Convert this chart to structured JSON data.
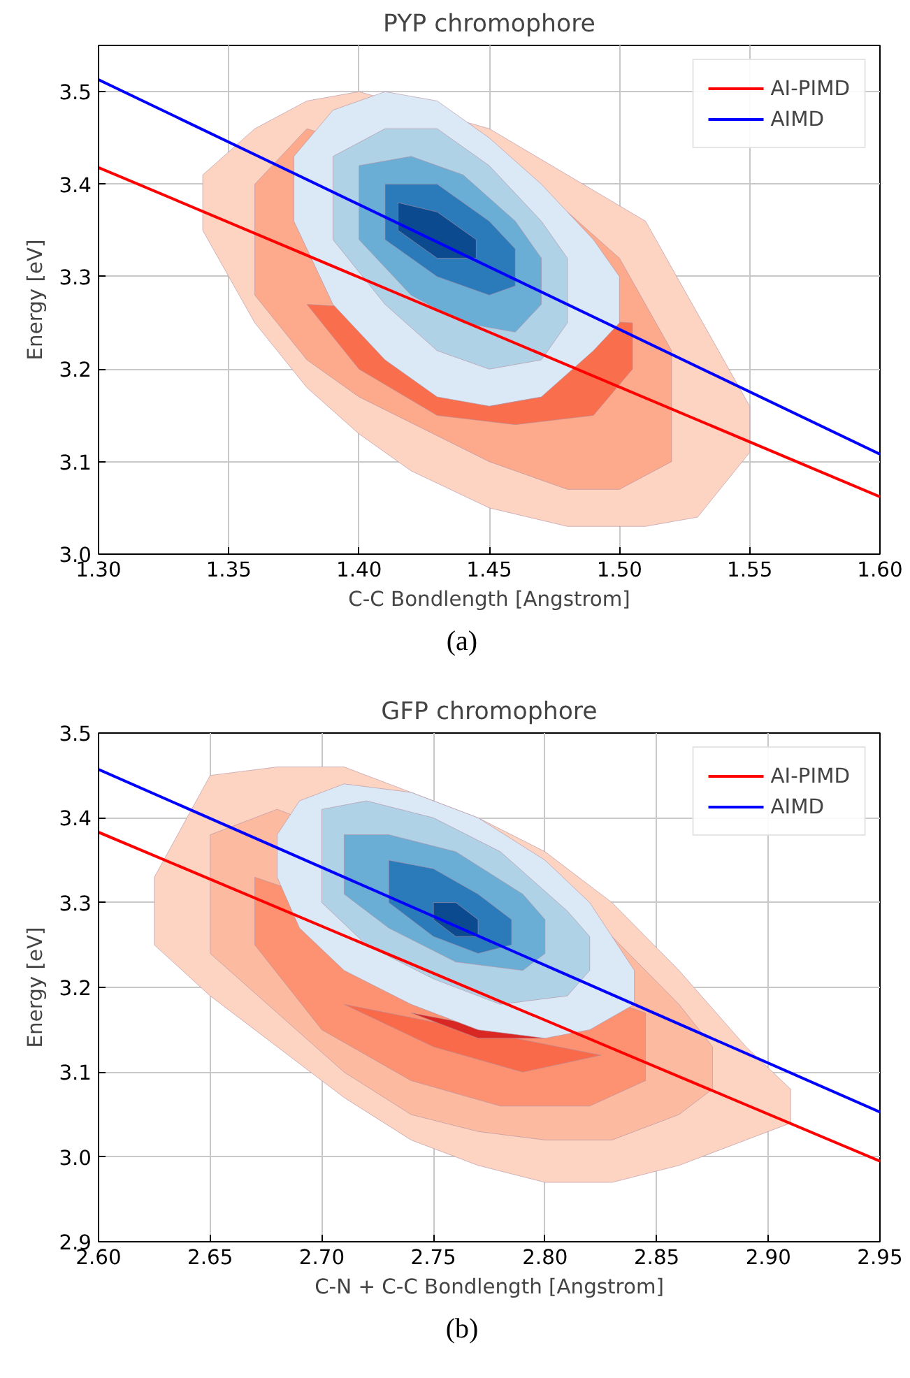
{
  "chart_data": [
    {
      "type": "area",
      "title": "PYP chromophore",
      "xlabel": "C-C Bondlength [Angstrom]",
      "ylabel": "Energy [eV]",
      "xlim": [
        1.3,
        1.6
      ],
      "ylim": [
        3.0,
        3.55
      ],
      "xticks": [
        {
          "value": 1.3,
          "label": "1.30"
        },
        {
          "value": 1.35,
          "label": "1.35"
        },
        {
          "value": 1.4,
          "label": "1.40"
        },
        {
          "value": 1.45,
          "label": "1.45"
        },
        {
          "value": 1.5,
          "label": "1.50"
        },
        {
          "value": 1.55,
          "label": "1.55"
        },
        {
          "value": 1.6,
          "label": "1.60"
        }
      ],
      "yticks": [
        {
          "value": 3.0,
          "label": "3.0"
        },
        {
          "value": 3.1,
          "label": "3.1"
        },
        {
          "value": 3.2,
          "label": "3.2"
        },
        {
          "value": 3.3,
          "label": "3.3"
        },
        {
          "value": 3.4,
          "label": "3.4"
        },
        {
          "value": 3.5,
          "label": "3.5"
        }
      ],
      "grid": true,
      "legend": "top right",
      "annotations": [
        "(a)"
      ],
      "series": [
        {
          "color": "#fdd4c2",
          "x": [
            1.34,
            1.36,
            1.38,
            1.4,
            null,
            1.45,
            1.48,
            1.51,
            1.53,
            1.55,
            1.55,
            1.53,
            1.51,
            1.48,
            1.45,
            1.42,
            1.4,
            1.38,
            1.36,
            1.34
          ],
          "values": [
            3.41,
            3.46,
            3.49,
            3.5,
            null,
            3.46,
            3.41,
            3.36,
            3.26,
            3.16,
            3.11,
            3.04,
            3.03,
            3.03,
            3.05,
            3.09,
            3.13,
            3.18,
            3.25,
            3.35
          ]
        },
        {
          "color": "#fca98c",
          "x": [
            1.36,
            1.38,
            null,
            null,
            1.48,
            1.5,
            1.52,
            1.52,
            1.5,
            1.48,
            1.45,
            1.4,
            1.38,
            1.36
          ],
          "values": [
            3.4,
            3.46,
            null,
            null,
            3.37,
            3.32,
            3.22,
            3.1,
            3.07,
            3.07,
            3.1,
            3.17,
            3.21,
            3.28
          ]
        },
        {
          "color": "#f96e4d",
          "x": [
            null,
            null,
            null,
            null,
            null,
            1.505,
            1.505,
            1.49,
            1.46,
            1.43,
            1.4,
            1.38
          ],
          "values": [
            null,
            null,
            null,
            null,
            null,
            3.25,
            3.2,
            3.15,
            3.14,
            3.15,
            3.2,
            3.27
          ]
        },
        {
          "color": "#e5372a",
          "x": [
            null,
            null,
            null,
            null,
            1.47,
            1.45,
            1.42,
            null
          ],
          "values": [
            null,
            null,
            null,
            null,
            3.17,
            3.16,
            3.19,
            null
          ]
        },
        {
          "color": "#dbe9f6",
          "x": [
            1.375,
            1.39,
            1.41,
            1.43,
            1.45,
            1.47,
            1.49,
            1.5,
            1.5,
            1.49,
            1.47,
            1.45,
            1.43,
            1.41,
            1.39,
            1.375
          ],
          "values": [
            3.43,
            3.48,
            3.5,
            3.49,
            3.45,
            3.4,
            3.34,
            3.3,
            3.25,
            3.22,
            3.17,
            3.16,
            3.17,
            3.21,
            3.27,
            3.36
          ]
        },
        {
          "color": "#b0d2e7",
          "x": [
            1.39,
            1.41,
            1.43,
            1.45,
            1.47,
            1.48,
            1.48,
            1.47,
            1.45,
            1.43,
            1.41,
            1.39
          ],
          "values": [
            3.43,
            3.46,
            3.46,
            3.42,
            3.36,
            3.32,
            3.25,
            3.21,
            3.2,
            3.22,
            3.27,
            3.34
          ]
        },
        {
          "color": "#6aaed6",
          "x": [
            1.4,
            1.42,
            1.44,
            1.46,
            1.47,
            1.47,
            1.46,
            1.44,
            1.42,
            1.4
          ],
          "values": [
            3.42,
            3.43,
            3.41,
            3.36,
            3.32,
            3.27,
            3.24,
            3.25,
            3.28,
            3.34
          ]
        },
        {
          "color": "#2b7bba",
          "x": [
            1.41,
            1.43,
            1.45,
            1.46,
            1.46,
            1.45,
            1.43,
            1.41
          ],
          "values": [
            3.4,
            3.4,
            3.36,
            3.33,
            3.29,
            3.28,
            3.3,
            3.34
          ]
        },
        {
          "color": "#0b4a8f",
          "x": [
            1.415,
            1.43,
            1.445,
            1.445,
            1.43,
            1.415
          ],
          "values": [
            3.38,
            3.37,
            3.34,
            3.32,
            3.32,
            3.35
          ]
        },
        {
          "type": "line",
          "name": "AI-PIMD",
          "color": "#ff0000",
          "x": [
            1.3,
            1.6
          ],
          "values": [
            3.418,
            3.062
          ]
        },
        {
          "type": "line",
          "name": "AIMD",
          "color": "#0000ff",
          "x": [
            1.3,
            1.6
          ],
          "values": [
            3.513,
            3.108
          ]
        }
      ]
    },
    {
      "type": "area",
      "title": "GFP chromophore",
      "xlabel": "C-N + C-C Bondlength [Angstrom]",
      "ylabel": "Energy [eV]",
      "xlim": [
        2.6,
        2.95
      ],
      "ylim": [
        2.9,
        3.5
      ],
      "xticks": [
        {
          "value": 2.6,
          "label": "2.60"
        },
        {
          "value": 2.65,
          "label": "2.65"
        },
        {
          "value": 2.7,
          "label": "2.70"
        },
        {
          "value": 2.75,
          "label": "2.75"
        },
        {
          "value": 2.8,
          "label": "2.80"
        },
        {
          "value": 2.85,
          "label": "2.85"
        },
        {
          "value": 2.9,
          "label": "2.90"
        },
        {
          "value": 2.95,
          "label": "2.95"
        }
      ],
      "yticks": [
        {
          "value": 2.9,
          "label": "2.9"
        },
        {
          "value": 3.0,
          "label": "3.0"
        },
        {
          "value": 3.1,
          "label": "3.1"
        },
        {
          "value": 3.2,
          "label": "3.2"
        },
        {
          "value": 3.3,
          "label": "3.3"
        },
        {
          "value": 3.4,
          "label": "3.4"
        },
        {
          "value": 3.5,
          "label": "3.5"
        }
      ],
      "grid": true,
      "legend": "top right",
      "annotations": [
        "(b)"
      ],
      "series": [
        {
          "color": "#fdd4c2",
          "x": [
            2.625,
            2.65,
            2.68,
            2.71,
            2.74,
            2.77,
            2.8,
            2.83,
            2.86,
            2.89,
            2.91,
            2.91,
            2.89,
            2.86,
            2.83,
            2.8,
            2.77,
            2.74,
            2.71,
            2.68,
            2.65,
            2.625
          ],
          "values": [
            3.33,
            3.45,
            3.46,
            3.46,
            3.43,
            3.4,
            3.36,
            3.3,
            3.22,
            3.13,
            3.08,
            3.04,
            3.02,
            2.99,
            2.97,
            2.97,
            2.99,
            3.02,
            3.07,
            3.13,
            3.19,
            3.25
          ]
        },
        {
          "color": "#fcbba1",
          "x": [
            2.65,
            2.68,
            null,
            null,
            null,
            null,
            2.83,
            2.86,
            2.875,
            2.875,
            2.86,
            2.83,
            2.8,
            2.77,
            2.74,
            2.71,
            2.68,
            2.65
          ],
          "values": [
            3.38,
            3.41,
            null,
            null,
            null,
            null,
            3.26,
            3.18,
            3.13,
            3.08,
            3.05,
            3.02,
            3.02,
            3.03,
            3.05,
            3.1,
            3.17,
            3.24
          ]
        },
        {
          "color": "#fc9272",
          "x": [
            2.67,
            null,
            null,
            null,
            null,
            2.845,
            2.845,
            2.82,
            2.78,
            2.74,
            2.7,
            2.67
          ],
          "values": [
            3.33,
            null,
            null,
            null,
            null,
            3.17,
            3.09,
            3.06,
            3.06,
            3.09,
            3.15,
            3.25
          ]
        },
        {
          "color": "#f96a4a",
          "x": [
            null,
            null,
            null,
            null,
            2.825,
            2.79,
            2.75,
            2.71
          ],
          "values": [
            null,
            null,
            null,
            null,
            3.12,
            3.1,
            3.13,
            3.18
          ]
        },
        {
          "color": "#d92723",
          "x": [
            null,
            null,
            null,
            2.8,
            2.77,
            2.74
          ],
          "values": [
            null,
            null,
            null,
            3.14,
            3.14,
            3.17
          ]
        },
        {
          "color": "#dbe9f6",
          "x": [
            2.68,
            2.69,
            2.71,
            2.74,
            2.77,
            2.8,
            2.82,
            2.84,
            2.84,
            2.82,
            2.8,
            2.77,
            2.74,
            2.71,
            2.69,
            2.68
          ],
          "values": [
            3.38,
            3.42,
            3.44,
            3.43,
            3.4,
            3.35,
            3.3,
            3.22,
            3.18,
            3.15,
            3.14,
            3.15,
            3.18,
            3.22,
            3.27,
            3.33
          ]
        },
        {
          "color": "#b0d2e7",
          "x": [
            2.7,
            2.72,
            2.75,
            2.78,
            2.81,
            2.82,
            2.82,
            2.81,
            2.78,
            2.75,
            2.72,
            2.7
          ],
          "values": [
            3.41,
            3.42,
            3.4,
            3.36,
            3.29,
            3.26,
            3.22,
            3.19,
            3.18,
            3.21,
            3.25,
            3.3
          ]
        },
        {
          "color": "#6aaed6",
          "x": [
            2.71,
            2.73,
            2.76,
            2.79,
            2.8,
            2.8,
            2.79,
            2.76,
            2.73,
            2.71
          ],
          "values": [
            3.38,
            3.38,
            3.36,
            3.31,
            3.28,
            3.24,
            3.22,
            3.23,
            3.27,
            3.31
          ]
        },
        {
          "color": "#2b7bba",
          "x": [
            2.73,
            2.75,
            2.77,
            2.785,
            2.785,
            2.77,
            2.75,
            2.73
          ],
          "values": [
            3.35,
            3.34,
            3.31,
            3.28,
            3.25,
            3.24,
            3.26,
            3.3
          ]
        },
        {
          "color": "#0b4a8f",
          "x": [
            2.75,
            2.76,
            2.77,
            2.77,
            2.76,
            2.75
          ],
          "values": [
            3.3,
            3.3,
            3.28,
            3.26,
            3.26,
            3.28
          ]
        },
        {
          "type": "line",
          "name": "AI-PIMD",
          "color": "#ff0000",
          "x": [
            2.6,
            2.95
          ],
          "values": [
            3.383,
            2.995
          ]
        },
        {
          "type": "line",
          "name": "AIMD",
          "color": "#0000ff",
          "x": [
            2.6,
            2.95
          ],
          "values": [
            3.457,
            3.053
          ]
        }
      ]
    }
  ]
}
